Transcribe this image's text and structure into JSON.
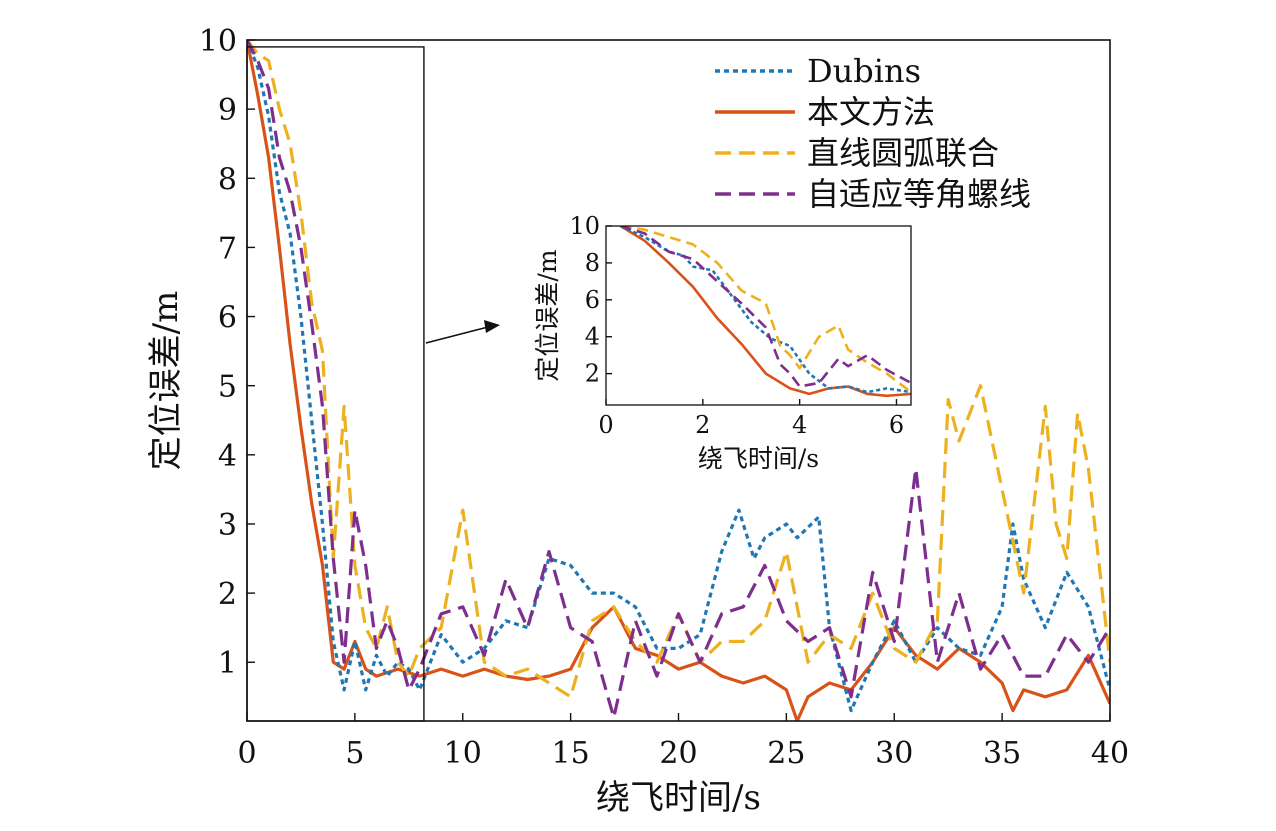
{
  "chart_data": [
    {
      "type": "line",
      "id": "main",
      "xlabel": "绕飞时间/s",
      "ylabel": "定位误差/m",
      "xlim": [
        0,
        40
      ],
      "ylim": [
        0.15,
        10
      ],
      "xticks": [
        0,
        5,
        10,
        15,
        20,
        25,
        30,
        35,
        40
      ],
      "yticks": [
        1,
        2,
        3,
        4,
        5,
        6,
        7,
        8,
        9,
        10
      ],
      "xtick_labels": [
        "0",
        "5",
        "10",
        "15",
        "20",
        "25",
        "30",
        "35",
        "40"
      ],
      "ytick_labels": [
        "1",
        "2",
        "3",
        "4",
        "5",
        "6",
        "7",
        "8",
        "9",
        "10"
      ],
      "legend_position": "top-right",
      "grid": false,
      "zoom_box": {
        "x": [
          0,
          8.2
        ],
        "y": [
          0.15,
          9.9
        ]
      },
      "series": [
        {
          "name": "Dubins",
          "style": "dotted",
          "color": "#1f77b4",
          "x": [
            0,
            0.5,
            1,
            1.5,
            2,
            2.5,
            3,
            3.5,
            4,
            4.5,
            5,
            5.5,
            6,
            6.5,
            7,
            7.5,
            8,
            9,
            10,
            11,
            12,
            13,
            14,
            15,
            16,
            17,
            18,
            19,
            20,
            21,
            22,
            22.8,
            23.5,
            24,
            25,
            25.5,
            26.5,
            27,
            28,
            29,
            30,
            31,
            32,
            33,
            34,
            35,
            35.5,
            36,
            37,
            38,
            39,
            40
          ],
          "y": [
            10,
            9.6,
            8.9,
            7.8,
            7.2,
            6.0,
            4.5,
            3.0,
            1.3,
            0.6,
            1.3,
            0.6,
            1.1,
            0.8,
            1.0,
            0.9,
            0.6,
            1.4,
            1.0,
            1.2,
            1.6,
            1.5,
            2.5,
            2.4,
            2.0,
            2.0,
            1.8,
            1.2,
            1.2,
            1.4,
            2.6,
            3.2,
            2.5,
            2.8,
            3.0,
            2.8,
            3.1,
            1.5,
            0.3,
            1.0,
            1.6,
            1.0,
            1.5,
            1.2,
            1.1,
            1.8,
            3.0,
            2.2,
            1.5,
            2.3,
            1.8,
            0.6
          ]
        },
        {
          "name": "本文方法",
          "style": "solid",
          "color": "#d95319",
          "x": [
            0,
            0.5,
            1,
            1.5,
            2,
            2.5,
            3,
            3.5,
            4,
            4.5,
            5,
            5.5,
            6,
            6.5,
            7,
            8,
            9,
            10,
            11,
            12,
            13,
            14,
            15,
            16,
            17,
            18,
            19,
            20,
            21,
            22,
            23,
            24,
            25,
            25.5,
            26,
            27,
            28,
            29,
            30,
            31,
            32,
            33,
            34,
            35,
            35.5,
            36,
            37,
            38,
            39,
            40
          ],
          "y": [
            10,
            9.2,
            8.3,
            7.0,
            5.6,
            4.4,
            3.3,
            2.4,
            1.0,
            0.9,
            1.3,
            0.9,
            0.8,
            0.85,
            0.9,
            0.8,
            0.9,
            0.8,
            0.9,
            0.8,
            0.75,
            0.8,
            0.9,
            1.5,
            1.8,
            1.2,
            1.1,
            0.9,
            1.0,
            0.8,
            0.7,
            0.8,
            0.6,
            0.15,
            0.5,
            0.7,
            0.6,
            1.0,
            1.5,
            1.1,
            0.9,
            1.2,
            1.0,
            0.7,
            0.3,
            0.6,
            0.5,
            0.6,
            1.1,
            0.4
          ]
        },
        {
          "name": "直线圆弧联合",
          "style": "dashed",
          "color": "#edb120",
          "x": [
            0,
            0.5,
            1,
            1.5,
            2,
            2.5,
            3,
            3.5,
            4,
            4.5,
            5,
            5.5,
            6,
            6.5,
            7,
            7.5,
            8,
            9,
            10,
            11,
            12,
            13,
            14,
            15,
            16,
            17,
            18,
            19,
            20,
            21,
            22,
            23,
            24,
            25,
            26,
            27,
            28,
            29,
            30,
            31,
            32,
            32.5,
            33,
            34,
            35,
            36,
            37,
            37.5,
            38,
            38.5,
            39,
            40
          ],
          "y": [
            10,
            9.8,
            9.7,
            9.0,
            8.5,
            7.5,
            6.2,
            5.5,
            2.5,
            4.7,
            2.4,
            1.5,
            1.2,
            1.8,
            1.0,
            0.8,
            1.2,
            1.5,
            3.2,
            1.0,
            0.8,
            0.9,
            0.7,
            0.5,
            1.6,
            1.8,
            1.3,
            1.0,
            1.7,
            1.0,
            1.3,
            1.3,
            1.6,
            2.6,
            1.0,
            1.4,
            1.2,
            2.0,
            1.2,
            1.0,
            1.6,
            4.8,
            4.2,
            5.0,
            3.5,
            2.0,
            4.7,
            3.0,
            2.5,
            4.6,
            3.8,
            1.0
          ]
        },
        {
          "name": "自适应等角螺线",
          "style": "dashed",
          "color": "#7e2f8e",
          "x": [
            0,
            0.5,
            1,
            1.5,
            2,
            2.5,
            3,
            3.5,
            4,
            4.5,
            5,
            5.5,
            6,
            6.5,
            7,
            7.5,
            8,
            9,
            10,
            11,
            12,
            13,
            14,
            15,
            16,
            17,
            18,
            19,
            20,
            21,
            22,
            23,
            24,
            25,
            26,
            27,
            28,
            29,
            30,
            31,
            32,
            33,
            34,
            35,
            36,
            37,
            38,
            39,
            40
          ],
          "y": [
            10,
            9.7,
            9.3,
            8.3,
            7.8,
            7.0,
            5.9,
            4.7,
            2.5,
            1.0,
            3.2,
            2.4,
            1.2,
            1.6,
            1.2,
            0.6,
            0.9,
            1.7,
            1.8,
            1.1,
            2.2,
            1.5,
            2.6,
            1.5,
            1.3,
            0.2,
            1.6,
            0.8,
            1.7,
            1.0,
            1.7,
            1.8,
            2.4,
            1.6,
            1.3,
            1.5,
            0.5,
            2.3,
            1.3,
            3.8,
            1.0,
            2.0,
            0.9,
            1.4,
            0.8,
            0.8,
            1.4,
            1.0,
            1.5
          ]
        }
      ]
    },
    {
      "type": "line",
      "id": "inset",
      "xlabel": "绕飞时间/s",
      "ylabel": "定位误差/m",
      "xlim": [
        0,
        6.3
      ],
      "ylim": [
        0.3,
        10
      ],
      "xticks": [
        0,
        2,
        4,
        6
      ],
      "yticks": [
        2,
        4,
        6,
        8,
        10
      ],
      "xtick_labels": [
        "0",
        "2",
        "4",
        "6"
      ],
      "ytick_labels": [
        "2",
        "4",
        "6",
        "8",
        "10"
      ],
      "series": [
        {
          "name": "Dubins",
          "style": "dotted",
          "color": "#1f77b4",
          "x": [
            0.3,
            0.8,
            1.3,
            1.6,
            1.8,
            2.2,
            2.6,
            3.0,
            3.4,
            3.8,
            4.2,
            4.6,
            5.0,
            5.4,
            5.8,
            6.3
          ],
          "y": [
            10,
            9.4,
            8.6,
            8.4,
            7.8,
            7.6,
            6.2,
            4.8,
            3.9,
            3.5,
            2.0,
            1.2,
            1.3,
            1.0,
            1.2,
            1.0
          ]
        },
        {
          "name": "本文方法",
          "style": "solid",
          "color": "#d95319",
          "x": [
            0.3,
            0.8,
            1.3,
            1.8,
            2.3,
            2.8,
            3.3,
            3.8,
            4.2,
            4.6,
            5.0,
            5.4,
            5.8,
            6.3
          ],
          "y": [
            10,
            9.2,
            8.0,
            6.7,
            5.0,
            3.6,
            2.0,
            1.2,
            0.9,
            1.2,
            1.3,
            0.9,
            0.8,
            0.9
          ]
        },
        {
          "name": "直线圆弧联合",
          "style": "dashed",
          "color": "#edb120",
          "x": [
            0.3,
            0.8,
            1.3,
            1.8,
            2.3,
            2.8,
            3.3,
            3.6,
            3.8,
            4.0,
            4.4,
            4.8,
            5.0,
            5.4,
            5.8,
            6.3
          ],
          "y": [
            10,
            9.8,
            9.4,
            9.0,
            8.0,
            6.5,
            5.8,
            3.5,
            3.0,
            2.3,
            4.0,
            4.6,
            3.3,
            2.6,
            2.0,
            1.0
          ]
        },
        {
          "name": "自适应等角螺线",
          "style": "dashed",
          "color": "#7e2f8e",
          "x": [
            0.3,
            0.8,
            1.3,
            1.8,
            2.3,
            2.8,
            3.3,
            3.6,
            3.8,
            4.0,
            4.4,
            4.8,
            5.0,
            5.4,
            5.8,
            6.3
          ],
          "y": [
            10,
            9.6,
            8.6,
            8.2,
            7.0,
            5.8,
            4.5,
            2.5,
            2.0,
            1.3,
            1.5,
            2.8,
            2.4,
            3.0,
            2.2,
            1.5
          ]
        }
      ]
    }
  ]
}
